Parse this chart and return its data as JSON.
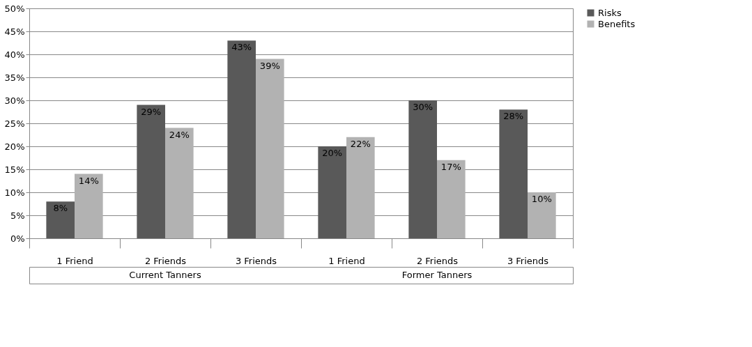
{
  "chart_data": {
    "type": "bar",
    "categories": [
      "1 Friend",
      "2 Friends",
      "3 Friends",
      "1 Friend",
      "2 Friends",
      "3 Friends"
    ],
    "series": [
      {
        "name": "Risks",
        "color": "#595959",
        "values": [
          8,
          29,
          43,
          20,
          30,
          28
        ],
        "value_labels": [
          "8%",
          "29%",
          "43%",
          "20%",
          "30%",
          "28%"
        ]
      },
      {
        "name": "Benefits",
        "color": "#b2b2b2",
        "values": [
          14,
          24,
          39,
          22,
          17,
          10
        ],
        "value_labels": [
          "14%",
          "24%",
          "39%",
          "22%",
          "17%",
          "10%"
        ]
      }
    ],
    "ylim": [
      0,
      50
    ],
    "yticks": [
      {
        "value": 0,
        "label": "0%"
      },
      {
        "value": 5,
        "label": "5%"
      },
      {
        "value": 10,
        "label": "10%"
      },
      {
        "value": 15,
        "label": "15%"
      },
      {
        "value": 20,
        "label": "20%"
      },
      {
        "value": 25,
        "label": "25%"
      },
      {
        "value": 30,
        "label": "30%"
      },
      {
        "value": 35,
        "label": "35%"
      },
      {
        "value": 40,
        "label": "40%"
      },
      {
        "value": 45,
        "label": "45%"
      },
      {
        "value": 50,
        "label": "50%"
      }
    ],
    "annotations": [
      "Current Tanners",
      "Former Tanners"
    ],
    "grid": "y",
    "legend": "right"
  }
}
